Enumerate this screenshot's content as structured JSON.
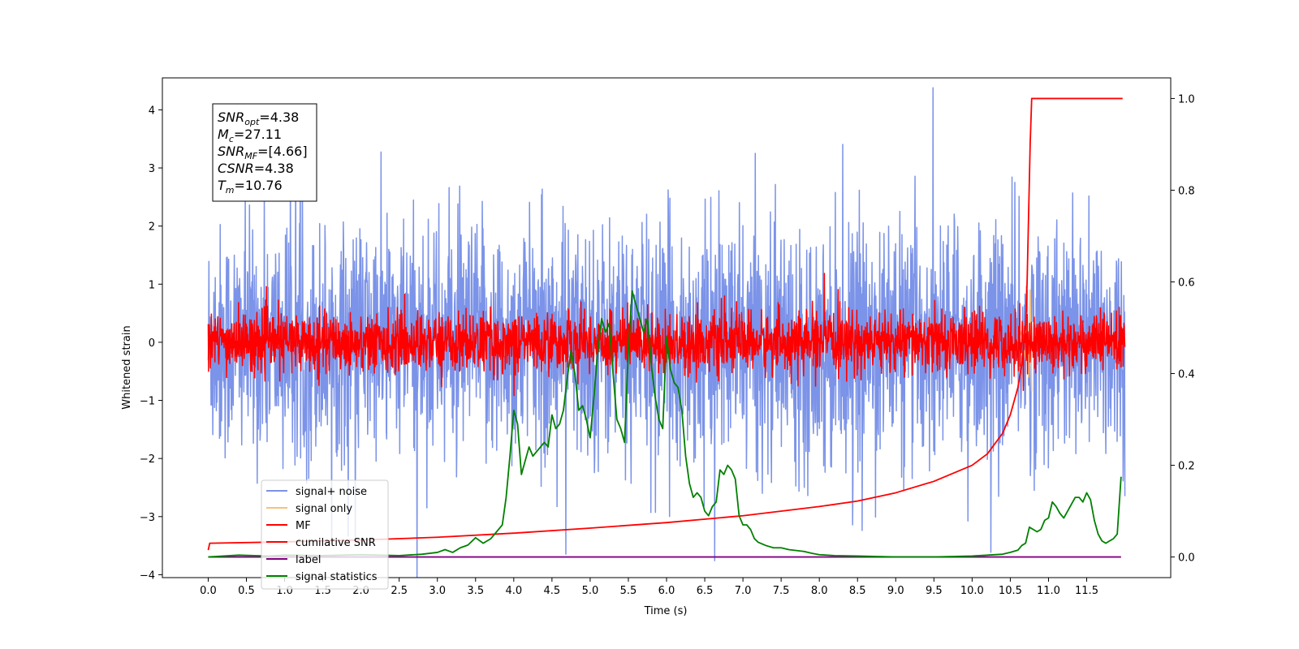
{
  "chart_data": {
    "type": "line",
    "title": "",
    "xlabel": "Time (s)",
    "ylabel": "Whitened strain",
    "xlim": [
      -0.6,
      12.6
    ],
    "ylim": [
      -4.05,
      4.55
    ],
    "y2lim": [
      -0.045,
      1.045
    ],
    "x_ticks": [
      "0.0",
      "0.5",
      "1.0",
      "1.5",
      "2.0",
      "2.5",
      "3.0",
      "3.5",
      "4.0",
      "4.5",
      "5.0",
      "5.5",
      "6.0",
      "6.5",
      "7.0",
      "7.5",
      "8.0",
      "8.5",
      "9.0",
      "9.5",
      "10.0",
      "10.5",
      "11.0",
      "11.5"
    ],
    "y_ticks": [
      "4",
      "3",
      "2",
      "1",
      "0",
      "−1",
      "−2",
      "−3",
      "−4"
    ],
    "y2_ticks": [
      "1.0",
      "0.8",
      "0.6",
      "0.4",
      "0.2",
      "0.0"
    ],
    "grid": false,
    "legend_position": "lower-left",
    "annotation": {
      "lines": [
        {
          "symbol": "SNR",
          "sub": "opt",
          "value": "=4.38"
        },
        {
          "symbol": "M",
          "sub": "c",
          "value": "=27.11"
        },
        {
          "symbol": "SNR",
          "sub": "MF",
          "value": "=[4.66]"
        },
        {
          "symbol": "CSNR",
          "sub": "",
          "value": "=4.38"
        },
        {
          "symbol": "T",
          "sub": "m",
          "value": "=10.76"
        }
      ]
    },
    "series": [
      {
        "name": "signal+ noise",
        "color": "#7b93e8",
        "axis": "left",
        "kind": "noise",
        "mean": 0.0,
        "std": 1.0,
        "x_range": [
          0.0,
          12.0
        ]
      },
      {
        "name": "signal only",
        "color": "#f6c27a",
        "axis": "left",
        "kind": "burst",
        "x": [
          10.6,
          10.65,
          10.7,
          10.72,
          10.74,
          10.76,
          10.78
        ],
        "y": [
          0.0,
          0.2,
          -0.3,
          0.5,
          -0.6,
          0.9,
          -0.85
        ]
      },
      {
        "name": "MF",
        "color": "#ff0000",
        "axis": "left",
        "kind": "noise",
        "mean": 0.0,
        "std": 0.25,
        "x_range": [
          0.0,
          12.0
        ]
      },
      {
        "name": "cumilative SNR",
        "color": "#ff0000",
        "axis": "right",
        "x": [
          0.0,
          0.02,
          1.0,
          2.0,
          3.0,
          4.0,
          5.0,
          6.0,
          7.0,
          8.0,
          8.5,
          9.0,
          9.5,
          10.0,
          10.2,
          10.4,
          10.5,
          10.6,
          10.65,
          10.7,
          10.72,
          10.74,
          10.76,
          10.78,
          11.97
        ],
        "y": [
          0.015,
          0.03,
          0.033,
          0.037,
          0.043,
          0.052,
          0.063,
          0.075,
          0.09,
          0.11,
          0.122,
          0.14,
          0.165,
          0.2,
          0.225,
          0.27,
          0.31,
          0.37,
          0.42,
          0.5,
          0.6,
          0.75,
          0.9,
          1.0,
          1.0
        ]
      },
      {
        "name": "label",
        "color": "#800080",
        "axis": "right",
        "x": [
          0.0,
          11.95
        ],
        "y": [
          0.0,
          0.0
        ]
      },
      {
        "name": "signal statistics",
        "color": "#008000",
        "axis": "right",
        "x": [
          0.0,
          0.2,
          0.4,
          0.6,
          0.8,
          1.0,
          1.5,
          2.0,
          2.5,
          2.8,
          3.0,
          3.1,
          3.2,
          3.3,
          3.4,
          3.5,
          3.6,
          3.7,
          3.8,
          3.85,
          3.9,
          3.95,
          4.0,
          4.05,
          4.1,
          4.15,
          4.2,
          4.25,
          4.3,
          4.35,
          4.4,
          4.45,
          4.5,
          4.55,
          4.6,
          4.65,
          4.7,
          4.75,
          4.8,
          4.85,
          4.9,
          4.95,
          5.0,
          5.05,
          5.1,
          5.15,
          5.2,
          5.25,
          5.3,
          5.35,
          5.4,
          5.45,
          5.5,
          5.55,
          5.6,
          5.65,
          5.7,
          5.75,
          5.8,
          5.85,
          5.9,
          5.95,
          6.0,
          6.05,
          6.1,
          6.15,
          6.2,
          6.25,
          6.3,
          6.35,
          6.4,
          6.45,
          6.5,
          6.55,
          6.6,
          6.65,
          6.7,
          6.75,
          6.8,
          6.85,
          6.9,
          6.95,
          7.0,
          7.05,
          7.1,
          7.15,
          7.2,
          7.3,
          7.4,
          7.5,
          7.6,
          7.7,
          7.8,
          7.9,
          8.0,
          8.2,
          8.5,
          9.0,
          9.5,
          10.0,
          10.2,
          10.4,
          10.5,
          10.6,
          10.65,
          10.7,
          10.75,
          10.8,
          10.85,
          10.9,
          10.95,
          11.0,
          11.05,
          11.1,
          11.15,
          11.2,
          11.25,
          11.3,
          11.35,
          11.4,
          11.45,
          11.5,
          11.55,
          11.6,
          11.65,
          11.7,
          11.75,
          11.8,
          11.85,
          11.9,
          11.95
        ],
        "y": [
          0.0,
          0.002,
          0.004,
          0.003,
          0.002,
          0.004,
          0.003,
          0.005,
          0.003,
          0.006,
          0.01,
          0.016,
          0.01,
          0.02,
          0.026,
          0.042,
          0.03,
          0.04,
          0.06,
          0.07,
          0.13,
          0.22,
          0.32,
          0.29,
          0.18,
          0.21,
          0.24,
          0.22,
          0.23,
          0.24,
          0.25,
          0.24,
          0.31,
          0.28,
          0.29,
          0.32,
          0.39,
          0.45,
          0.4,
          0.32,
          0.33,
          0.3,
          0.26,
          0.35,
          0.45,
          0.52,
          0.49,
          0.51,
          0.4,
          0.3,
          0.28,
          0.25,
          0.45,
          0.58,
          0.55,
          0.52,
          0.49,
          0.52,
          0.42,
          0.35,
          0.3,
          0.28,
          0.48,
          0.41,
          0.38,
          0.37,
          0.32,
          0.22,
          0.16,
          0.13,
          0.14,
          0.13,
          0.1,
          0.09,
          0.11,
          0.12,
          0.19,
          0.18,
          0.2,
          0.19,
          0.17,
          0.09,
          0.07,
          0.07,
          0.06,
          0.04,
          0.032,
          0.025,
          0.02,
          0.02,
          0.016,
          0.014,
          0.012,
          0.008,
          0.005,
          0.003,
          0.002,
          0.0,
          0.0,
          0.002,
          0.004,
          0.006,
          0.01,
          0.015,
          0.025,
          0.03,
          0.065,
          0.06,
          0.055,
          0.06,
          0.08,
          0.085,
          0.12,
          0.11,
          0.095,
          0.085,
          0.1,
          0.115,
          0.13,
          0.13,
          0.12,
          0.14,
          0.125,
          0.08,
          0.05,
          0.035,
          0.03,
          0.035,
          0.04,
          0.05,
          0.175
        ]
      }
    ]
  }
}
